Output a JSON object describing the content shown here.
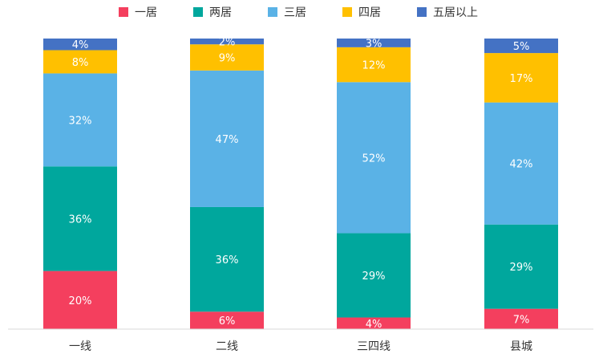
{
  "chart_data": {
    "type": "bar",
    "stacked": true,
    "normalized": true,
    "categories": [
      "一线",
      "二线",
      "三四线",
      "县城"
    ],
    "series": [
      {
        "name": "一居",
        "color": "#F43F5E",
        "values": [
          20,
          6,
          4,
          7
        ],
        "labels": [
          "20%",
          "6%",
          "4%",
          "7%"
        ]
      },
      {
        "name": "两居",
        "color": "#00A79D",
        "values": [
          36,
          36,
          29,
          29
        ],
        "labels": [
          "36%",
          "36%",
          "29%",
          "29%"
        ]
      },
      {
        "name": "三居",
        "color": "#5AB2E6",
        "values": [
          32,
          47,
          52,
          42
        ],
        "labels": [
          "32%",
          "47%",
          "52%",
          "42%"
        ]
      },
      {
        "name": "四居",
        "color": "#FFC000",
        "values": [
          8,
          9,
          12,
          17
        ],
        "labels": [
          "8%",
          "9%",
          "12%",
          "17%"
        ]
      },
      {
        "name": "五居以上",
        "color": "#4472C4",
        "values": [
          4,
          2,
          3,
          5
        ],
        "labels": [
          "4%",
          "2%",
          "3%",
          "5%"
        ]
      }
    ],
    "ylim": [
      0,
      100
    ],
    "grid": false,
    "legend": "top-center"
  }
}
